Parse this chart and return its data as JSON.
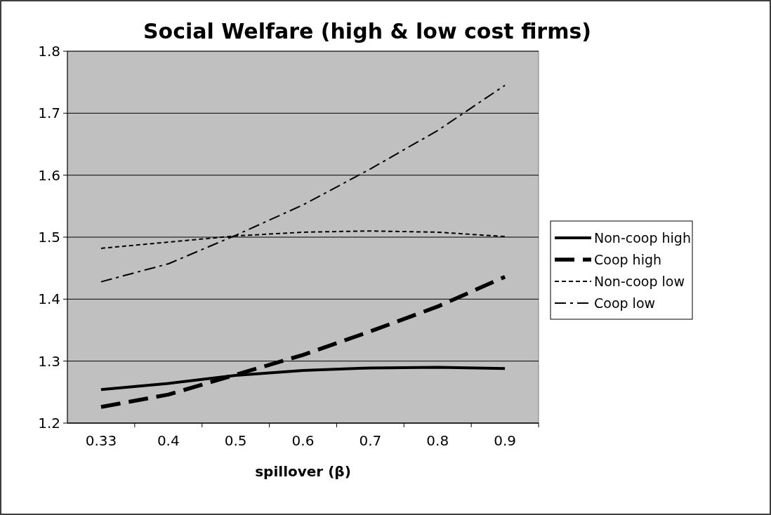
{
  "chart_data": {
    "type": "line",
    "title": "Social Welfare (high & low cost firms)",
    "xlabel": "spillover (β)",
    "categories": [
      "0.33",
      "0.4",
      "0.5",
      "0.6",
      "0.7",
      "0.8",
      "0.9"
    ],
    "ylim": [
      1.2,
      1.8
    ],
    "yticks": [
      1.2,
      1.3,
      1.4,
      1.5,
      1.6,
      1.7,
      1.8
    ],
    "grid": "y",
    "legend": "right",
    "marker": "none",
    "series": [
      {
        "name": "Non-coop high",
        "color": "#000000",
        "line_style": "solid",
        "values": [
          1.254,
          1.264,
          1.277,
          1.285,
          1.289,
          1.29,
          1.288
        ]
      },
      {
        "name": "Coop high",
        "color": "#000000",
        "line_style": "dashed",
        "values": [
          1.226,
          1.246,
          1.278,
          1.31,
          1.348,
          1.388,
          1.436
        ]
      },
      {
        "name": "Non-coop low",
        "color": "#000000",
        "line_style": "dotted",
        "values": [
          1.482,
          1.492,
          1.502,
          1.508,
          1.51,
          1.508,
          1.501
        ]
      },
      {
        "name": "Coop low",
        "color": "#000000",
        "line_style": "dashed",
        "values": [
          1.428,
          1.457,
          1.503,
          1.552,
          1.61,
          1.672,
          1.745
        ]
      }
    ]
  }
}
